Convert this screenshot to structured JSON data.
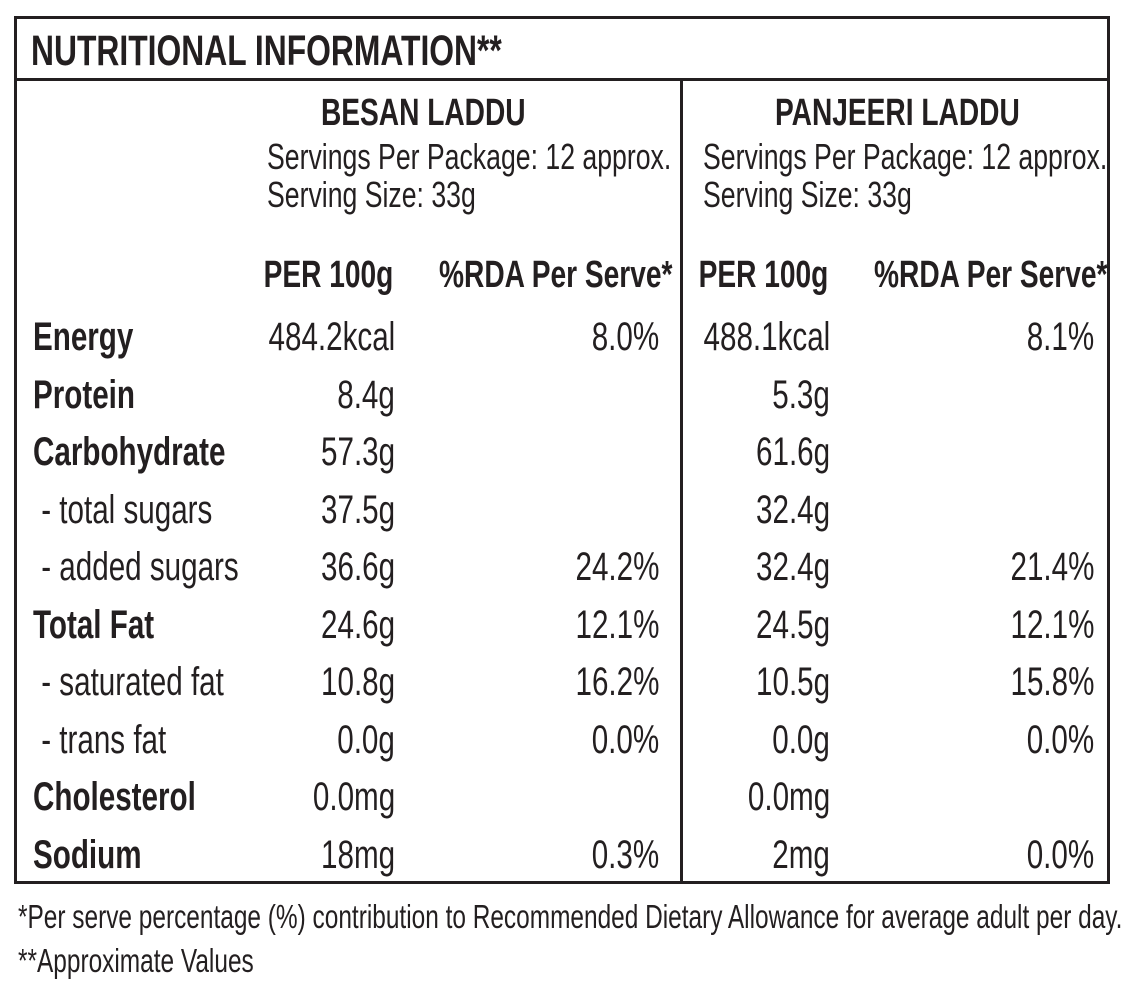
{
  "title": "NUTRITIONAL INFORMATION**",
  "products": [
    {
      "name": "BESAN LADDU",
      "servings": "Servings Per Package: 12 approx.",
      "serving_size": "Serving Size: 33g"
    },
    {
      "name": "PANJEERI LADDU",
      "servings": "Servings Per Package: 12 approx.",
      "serving_size": "Serving Size: 33g"
    }
  ],
  "column_headers": {
    "per100": "PER 100g",
    "rda": "%RDA Per Serve*"
  },
  "rows": [
    {
      "name": "Energy",
      "bold": true,
      "v": [
        "484.2kcal",
        "8.0%",
        "488.1kcal",
        "8.1%"
      ]
    },
    {
      "name": "Protein",
      "bold": true,
      "v": [
        "8.4g",
        "",
        "5.3g",
        ""
      ]
    },
    {
      "name": "Carbohydrate",
      "bold": true,
      "v": [
        "57.3g",
        "",
        "61.6g",
        ""
      ]
    },
    {
      "name": " - total sugars",
      "bold": false,
      "v": [
        "37.5g",
        "",
        "32.4g",
        ""
      ]
    },
    {
      "name": " - added sugars",
      "bold": false,
      "v": [
        "36.6g",
        "24.2%",
        "32.4g",
        "21.4%"
      ]
    },
    {
      "name": "Total Fat",
      "bold": true,
      "v": [
        "24.6g",
        "12.1%",
        "24.5g",
        "12.1%"
      ]
    },
    {
      "name": " - saturated fat",
      "bold": false,
      "v": [
        "10.8g",
        "16.2%",
        "10.5g",
        "15.8%"
      ]
    },
    {
      "name": " - trans fat",
      "bold": false,
      "v": [
        "0.0g",
        "0.0%",
        "0.0g",
        "0.0%"
      ]
    },
    {
      "name": "Cholesterol",
      "bold": true,
      "v": [
        "0.0mg",
        "",
        "0.0mg",
        ""
      ]
    },
    {
      "name": "Sodium",
      "bold": true,
      "v": [
        "18mg",
        "0.3%",
        "2mg",
        "0.0%"
      ]
    }
  ],
  "footnotes": [
    "*Per serve percentage (%) contribution to Recommended Dietary Allowance for average adult per day.",
    "**Approximate Values"
  ]
}
